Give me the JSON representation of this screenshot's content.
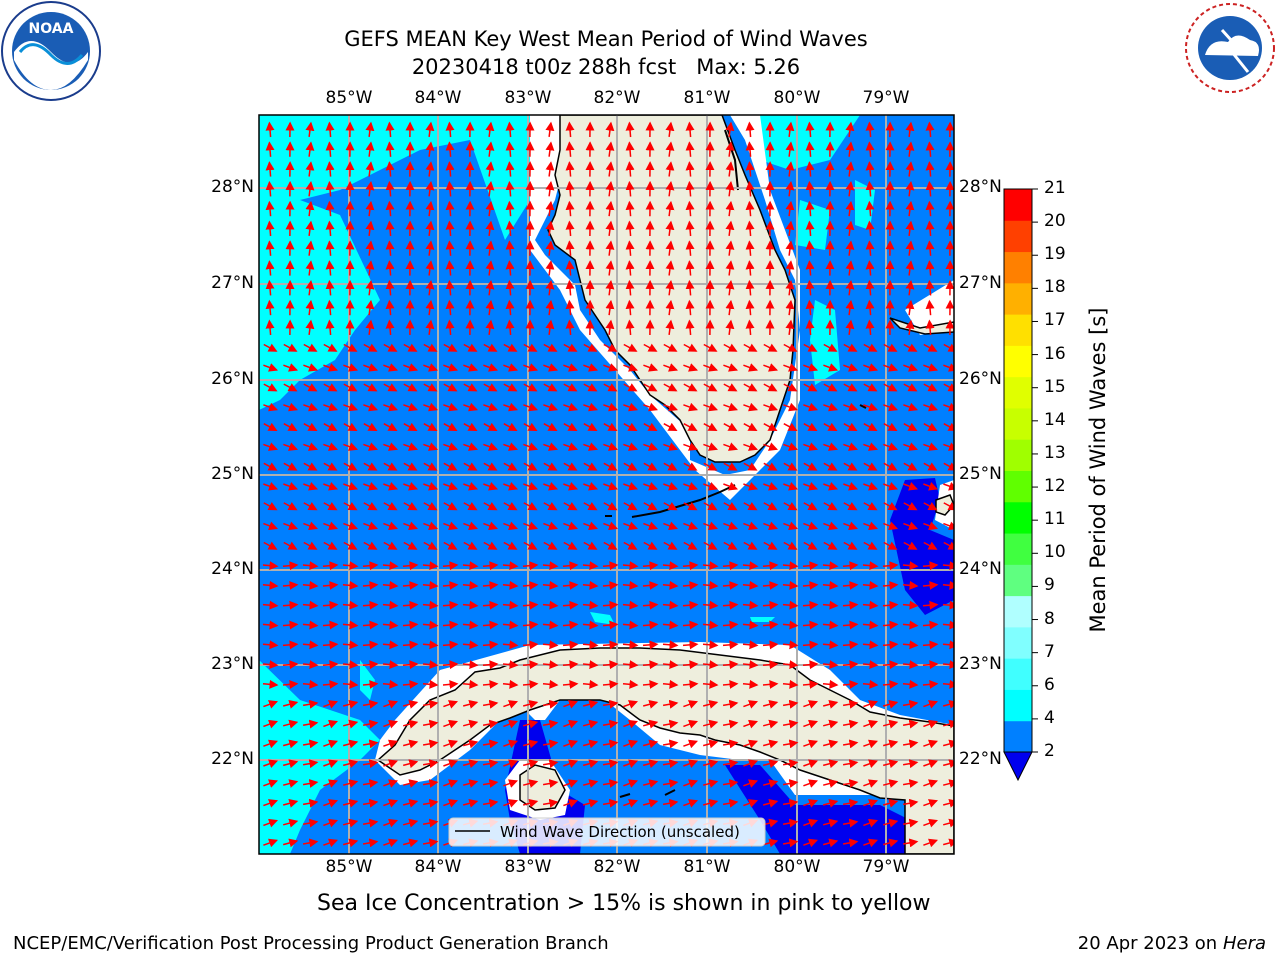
{
  "title": {
    "line1": "GEFS MEAN Key West Mean Period of Wind Waves",
    "line2": "20230418 t00z 288h fcst   Max: 5.26"
  },
  "logos": {
    "left": "NOAA",
    "right": "NATIONAL WEATHER SERVICE"
  },
  "map": {
    "lon_labels": [
      "85°W",
      "84°W",
      "83°W",
      "82°W",
      "81°W",
      "80°W",
      "79°W"
    ],
    "lat_labels": [
      "28°N",
      "27°N",
      "26°N",
      "25°N",
      "24°N",
      "23°N",
      "22°N"
    ],
    "legend_label": "Wind Wave Direction (unscaled)",
    "colors": {
      "land": "#eeeedd",
      "field_4_6": "#00ffff",
      "field_2_4": "#007fff",
      "field_below_2": "#0000ee",
      "arrows": "#ff0000",
      "grid": "#b0b0b0"
    }
  },
  "colorbar": {
    "label": "Mean Period of Wind Waves [s]",
    "ticks": [
      "2",
      "4",
      "6",
      "7",
      "8",
      "9",
      "10",
      "11",
      "12",
      "13",
      "14",
      "15",
      "16",
      "17",
      "18",
      "19",
      "20",
      "21"
    ],
    "colors": [
      "#0080ff",
      "#00ffff",
      "#40ffff",
      "#80ffff",
      "#b0ffff",
      "#5fff80",
      "#40ff40",
      "#00ff00",
      "#60ff00",
      "#a0ff00",
      "#c8ff00",
      "#e0ff00",
      "#ffff00",
      "#ffe000",
      "#ffb000",
      "#ff8000",
      "#ff4000",
      "#ff0000"
    ],
    "extend_color": "#0000ee"
  },
  "note": "Sea Ice Concentration > 15% is shown in pink to yellow",
  "footer": {
    "left": "NCEP/EMC/Verification Post Processing Product Generation Branch",
    "right_date": "20 Apr 2023 on ",
    "right_host": "Hera"
  }
}
